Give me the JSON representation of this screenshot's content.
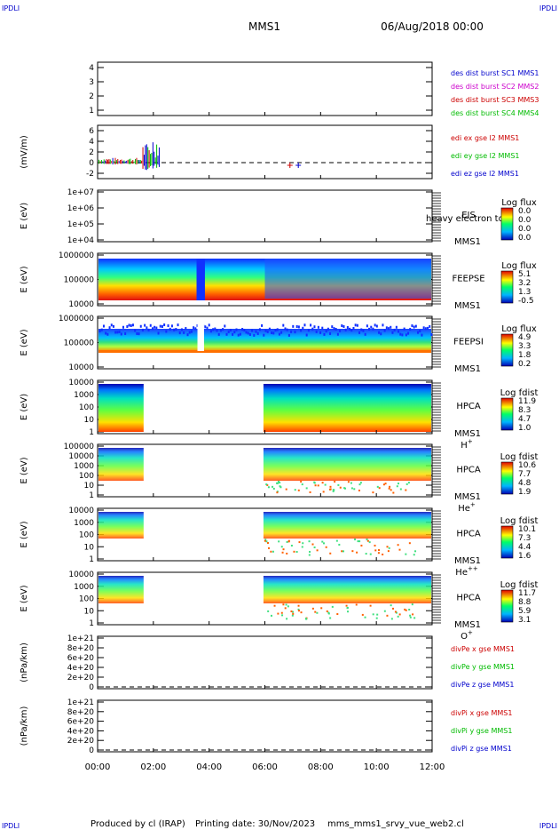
{
  "corner_labels": {
    "top_left": "IPDLI",
    "top_right": "IPDLI",
    "bottom_left": "IPDLI",
    "bottom_right": "IPDLI"
  },
  "header": {
    "spacecraft": "MMS1",
    "datetime": "06/Aug/2018 00:00"
  },
  "footer": {
    "producer": "Produced by cl (IRAP)",
    "printing_date": "Printing date: 30/Nov/2023",
    "file": "mms_mms1_srvy_vue_web2.cl"
  },
  "colors": {
    "mms1": "#0000cc",
    "mms2": "#cc00cc",
    "mms3": "#cc0000",
    "mms4": "#00bb00",
    "x": "#cc0000",
    "y": "#00bb00",
    "z": "#0000cc"
  },
  "chart_data": [
    {
      "type": "line",
      "id": "des",
      "yticks": [
        "1",
        "2",
        "3",
        "4"
      ],
      "ylim": [
        0.7,
        4.6
      ],
      "legend": [
        "des dist burst SC1 MMS1",
        "des dist burst SC2 MMS2",
        "des dist burst SC3 MMS3",
        "des dist burst SC4 MMS4"
      ]
    },
    {
      "type": "line",
      "id": "edi",
      "ylabel": "(mV/m)",
      "yticks": [
        "-2",
        "0",
        "2",
        "4",
        "6"
      ],
      "ylim": [
        -3,
        6
      ],
      "legend": [
        "edi ex gse l2 MMS1",
        "edi ey gse l2 MMS1",
        "edi ez gse l2 MMS1"
      ]
    },
    {
      "type": "heatmap",
      "id": "eis",
      "ylabel": "E (eV)",
      "yticks": [
        "1e+04",
        "1e+05",
        "1e+06",
        "1e+07"
      ],
      "instrument": "EIS",
      "sub": "MMS1",
      "overlay": "heavy electron to",
      "colorbar_title": "Log flux",
      "colorbar_ticks": [
        "0.0",
        "0.0",
        "0.0",
        "0.0"
      ]
    },
    {
      "type": "heatmap",
      "id": "feepse",
      "ylabel": "E (eV)",
      "yticks": [
        "10000",
        "100000",
        "1000000"
      ],
      "instrument": "FEEPSE",
      "sub": "MMS1",
      "colorbar_title": "Log flux",
      "colorbar_ticks": [
        "5.1",
        "3.2",
        "1.3",
        "-0.5"
      ]
    },
    {
      "type": "heatmap",
      "id": "feepsi",
      "ylabel": "E (eV)",
      "yticks": [
        "10000",
        "100000",
        "1000000"
      ],
      "instrument": "FEEPSI",
      "sub": "MMS1",
      "colorbar_title": "Log flux",
      "colorbar_ticks": [
        "4.9",
        "3.3",
        "1.8",
        "0.2"
      ]
    },
    {
      "type": "heatmap",
      "id": "hpca_h",
      "ylabel": "E (eV)",
      "yticks": [
        "1",
        "10",
        "100",
        "1000",
        "10000"
      ],
      "instrument": "HPCA",
      "sub": "MMS1",
      "species": "H",
      "charge": "+",
      "colorbar_title": "Log fdist",
      "colorbar_ticks": [
        "11.9",
        "8.3",
        "4.7",
        "1.0"
      ]
    },
    {
      "type": "heatmap",
      "id": "hpca_he1",
      "ylabel": "E (eV)",
      "yticks": [
        "1",
        "10",
        "100",
        "1000",
        "10000",
        "100000"
      ],
      "instrument": "HPCA",
      "sub": "MMS1",
      "species": "He",
      "charge": "+",
      "colorbar_title": "Log fdist",
      "colorbar_ticks": [
        "10.6",
        "7.7",
        "4.8",
        "1.9"
      ]
    },
    {
      "type": "heatmap",
      "id": "hpca_he2",
      "ylabel": "E (eV)",
      "yticks": [
        "1",
        "10",
        "100",
        "1000",
        "10000"
      ],
      "instrument": "HPCA",
      "sub": "MMS1",
      "species": "He",
      "charge": "++",
      "colorbar_title": "Log fdist",
      "colorbar_ticks": [
        "10.1",
        "7.3",
        "4.4",
        "1.6"
      ]
    },
    {
      "type": "heatmap",
      "id": "hpca_o",
      "ylabel": "E (eV)",
      "yticks": [
        "1",
        "10",
        "100",
        "1000",
        "10000"
      ],
      "instrument": "HPCA",
      "sub": "MMS1",
      "species": "O",
      "charge": "+",
      "colorbar_title": "Log fdist",
      "colorbar_ticks": [
        "11.7",
        "8.8",
        "5.9",
        "3.1"
      ]
    },
    {
      "type": "line",
      "id": "divpe",
      "ylabel": "(nPa/km)",
      "yticks": [
        "0",
        "2e+20",
        "4e+20",
        "6e+20",
        "8e+20",
        "1e+21"
      ],
      "legend": [
        "divPe x gse MMS1",
        "divPe y gse MMS1",
        "divPe z gse MMS1"
      ]
    },
    {
      "type": "line",
      "id": "divpi",
      "ylabel": "(nPa/km)",
      "yticks": [
        "0",
        "2e+20",
        "4e+20",
        "6e+20",
        "8e+20",
        "1e+21"
      ],
      "legend": [
        "divPi x gse MMS1",
        "divPi y gse MMS1",
        "divPi z gse MMS1"
      ]
    }
  ],
  "x_axis": {
    "ticks": [
      "00:00",
      "02:00",
      "04:00",
      "06:00",
      "08:00",
      "10:00",
      "12:00"
    ],
    "range_hours": [
      0,
      12
    ]
  },
  "coverage": {
    "hpca_gap_hours": [
      1.65,
      5.95
    ],
    "feeps_gap_hours": [
      3.55,
      3.85
    ]
  }
}
